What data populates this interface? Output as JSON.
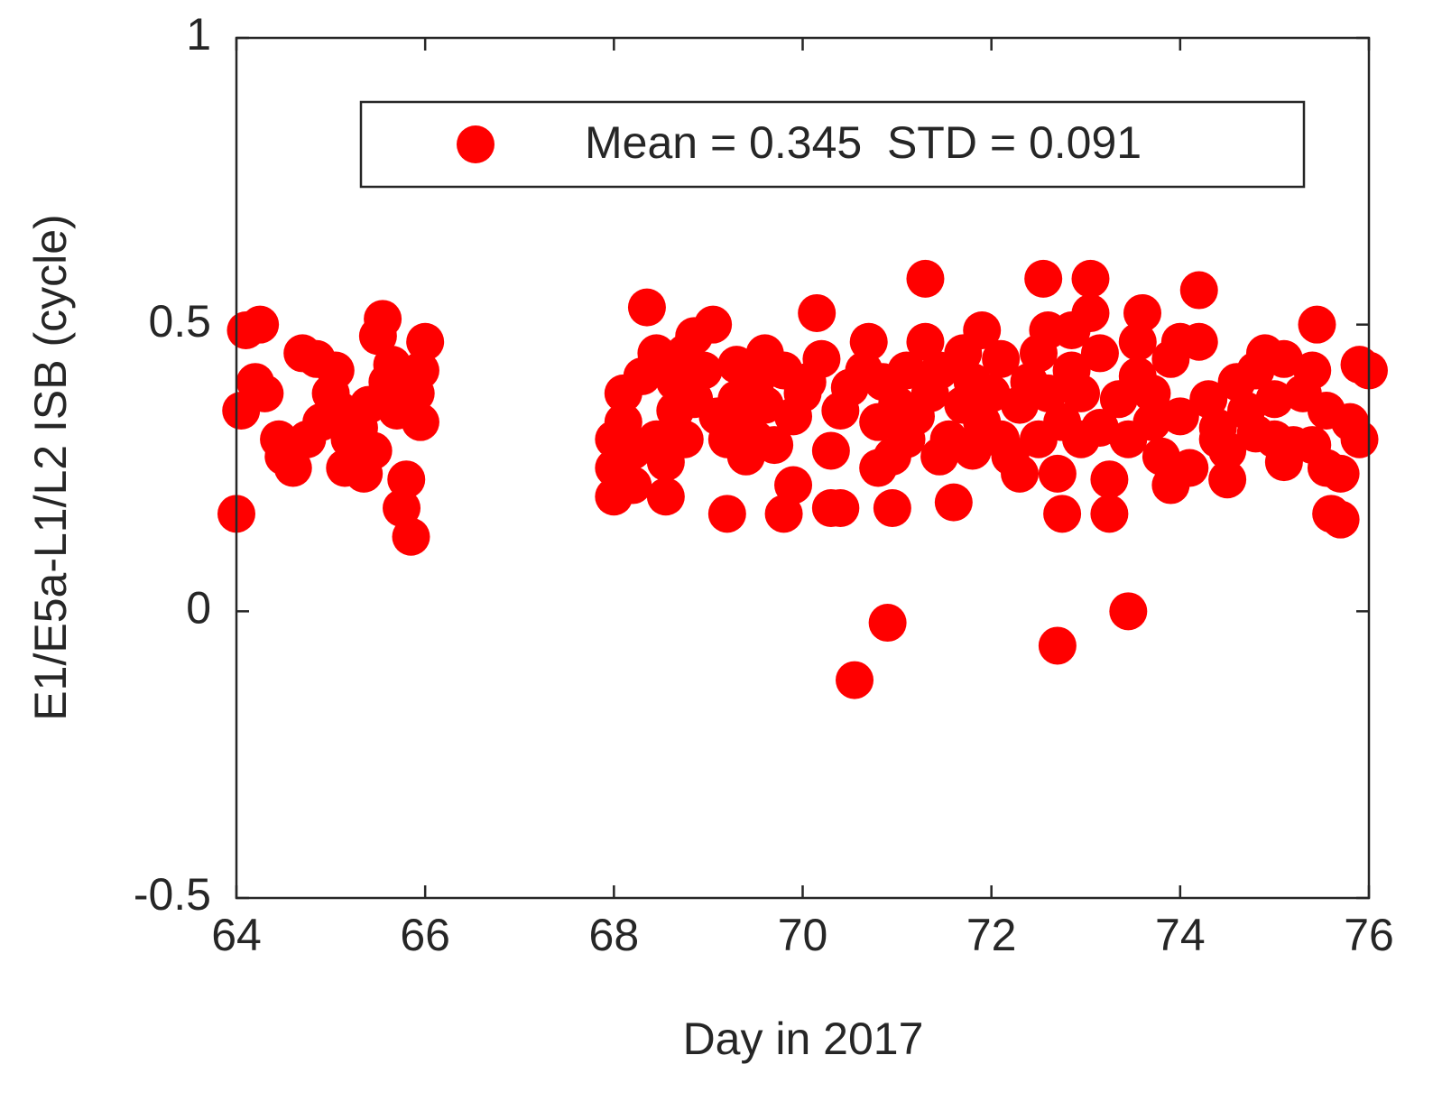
{
  "chart_data": {
    "type": "scatter",
    "xlabel": "Day in 2017",
    "ylabel": "E1/E5a-L1/L2 ISB (cycle)",
    "xlim": [
      64,
      76
    ],
    "ylim": [
      -0.5,
      1
    ],
    "xticks": [
      64,
      66,
      68,
      70,
      72,
      74,
      76
    ],
    "yticks": [
      -0.5,
      0,
      0.5,
      1
    ],
    "legend": "upper right",
    "series": [
      {
        "name": "Mean = 0.345  STD = 0.091",
        "color": "#ff0000",
        "x": [
          64.0,
          64.05,
          64.1,
          64.25,
          64.2,
          64.3,
          64.45,
          64.5,
          64.6,
          64.7,
          64.75,
          64.85,
          64.9,
          65.0,
          65.05,
          65.1,
          65.15,
          65.2,
          65.3,
          65.35,
          65.4,
          65.45,
          65.5,
          65.55,
          65.6,
          65.65,
          65.7,
          65.75,
          65.8,
          65.85,
          65.9,
          65.95,
          66.0,
          65.95,
          68.0,
          68.0,
          68.0,
          68.1,
          68.1,
          68.2,
          68.2,
          68.3,
          68.35,
          68.45,
          68.45,
          68.55,
          68.55,
          68.65,
          68.65,
          68.75,
          68.75,
          68.85,
          68.85,
          68.95,
          69.05,
          69.1,
          69.2,
          69.2,
          69.3,
          69.3,
          69.4,
          69.4,
          69.5,
          69.5,
          69.6,
          69.6,
          69.7,
          69.8,
          69.8,
          69.9,
          69.9,
          70.0,
          70.05,
          70.15,
          70.2,
          70.3,
          70.3,
          70.4,
          70.4,
          70.5,
          70.55,
          70.65,
          70.7,
          70.8,
          70.8,
          70.85,
          70.9,
          70.95,
          70.95,
          71.0,
          71.1,
          71.1,
          71.2,
          71.3,
          71.3,
          71.35,
          71.45,
          71.45,
          71.55,
          71.6,
          71.7,
          71.7,
          71.8,
          71.8,
          71.9,
          71.9,
          72.0,
          72.1,
          72.1,
          72.2,
          72.3,
          72.3,
          72.4,
          72.5,
          72.5,
          72.55,
          72.6,
          72.6,
          72.7,
          72.7,
          72.75,
          72.75,
          72.85,
          72.85,
          72.95,
          72.95,
          73.05,
          73.05,
          73.15,
          73.15,
          73.25,
          73.25,
          73.35,
          73.45,
          73.45,
          73.55,
          73.55,
          73.6,
          73.7,
          73.7,
          73.8,
          73.9,
          73.9,
          74.0,
          74.0,
          74.1,
          74.2,
          74.2,
          74.3,
          74.4,
          74.4,
          74.5,
          74.5,
          74.6,
          74.7,
          74.8,
          74.8,
          74.9,
          75.0,
          75.0,
          75.1,
          75.1,
          75.2,
          75.3,
          75.4,
          75.4,
          75.45,
          75.55,
          75.55,
          75.6,
          75.7,
          75.7,
          75.8,
          75.9,
          75.9,
          76.0
        ],
        "values": [
          0.17,
          0.35,
          0.49,
          0.5,
          0.4,
          0.38,
          0.3,
          0.27,
          0.25,
          0.45,
          0.3,
          0.44,
          0.33,
          0.38,
          0.42,
          0.35,
          0.25,
          0.3,
          0.32,
          0.24,
          0.36,
          0.28,
          0.48,
          0.51,
          0.4,
          0.43,
          0.35,
          0.18,
          0.23,
          0.13,
          0.38,
          0.42,
          0.47,
          0.33,
          0.2,
          0.25,
          0.3,
          0.38,
          0.33,
          0.28,
          0.22,
          0.41,
          0.53,
          0.45,
          0.3,
          0.2,
          0.26,
          0.35,
          0.4,
          0.3,
          0.45,
          0.48,
          0.37,
          0.42,
          0.5,
          0.34,
          0.3,
          0.17,
          0.37,
          0.43,
          0.27,
          0.33,
          0.4,
          0.3,
          0.45,
          0.36,
          0.29,
          0.17,
          0.42,
          0.22,
          0.34,
          0.38,
          0.4,
          0.52,
          0.44,
          0.28,
          0.18,
          0.18,
          0.35,
          0.39,
          -0.12,
          0.42,
          0.47,
          0.25,
          0.33,
          0.4,
          -0.02,
          0.18,
          0.27,
          0.36,
          0.42,
          0.3,
          0.34,
          0.58,
          0.47,
          0.38,
          0.27,
          0.42,
          0.3,
          0.19,
          0.36,
          0.45,
          0.4,
          0.28,
          0.49,
          0.33,
          0.38,
          0.3,
          0.44,
          0.27,
          0.36,
          0.24,
          0.4,
          0.3,
          0.45,
          0.58,
          0.49,
          0.38,
          -0.06,
          0.24,
          0.17,
          0.33,
          0.42,
          0.49,
          0.3,
          0.38,
          0.58,
          0.52,
          0.45,
          0.32,
          0.23,
          0.17,
          0.37,
          0.0,
          0.3,
          0.41,
          0.47,
          0.52,
          0.33,
          0.38,
          0.27,
          0.22,
          0.44,
          0.34,
          0.47,
          0.25,
          0.56,
          0.47,
          0.37,
          0.32,
          0.3,
          0.28,
          0.23,
          0.4,
          0.35,
          0.42,
          0.31,
          0.45,
          0.37,
          0.3,
          0.44,
          0.26,
          0.29,
          0.38,
          0.42,
          0.29,
          0.5,
          0.25,
          0.35,
          0.17,
          0.24,
          0.16,
          0.33,
          0.43,
          0.3,
          0.42
        ]
      }
    ]
  }
}
